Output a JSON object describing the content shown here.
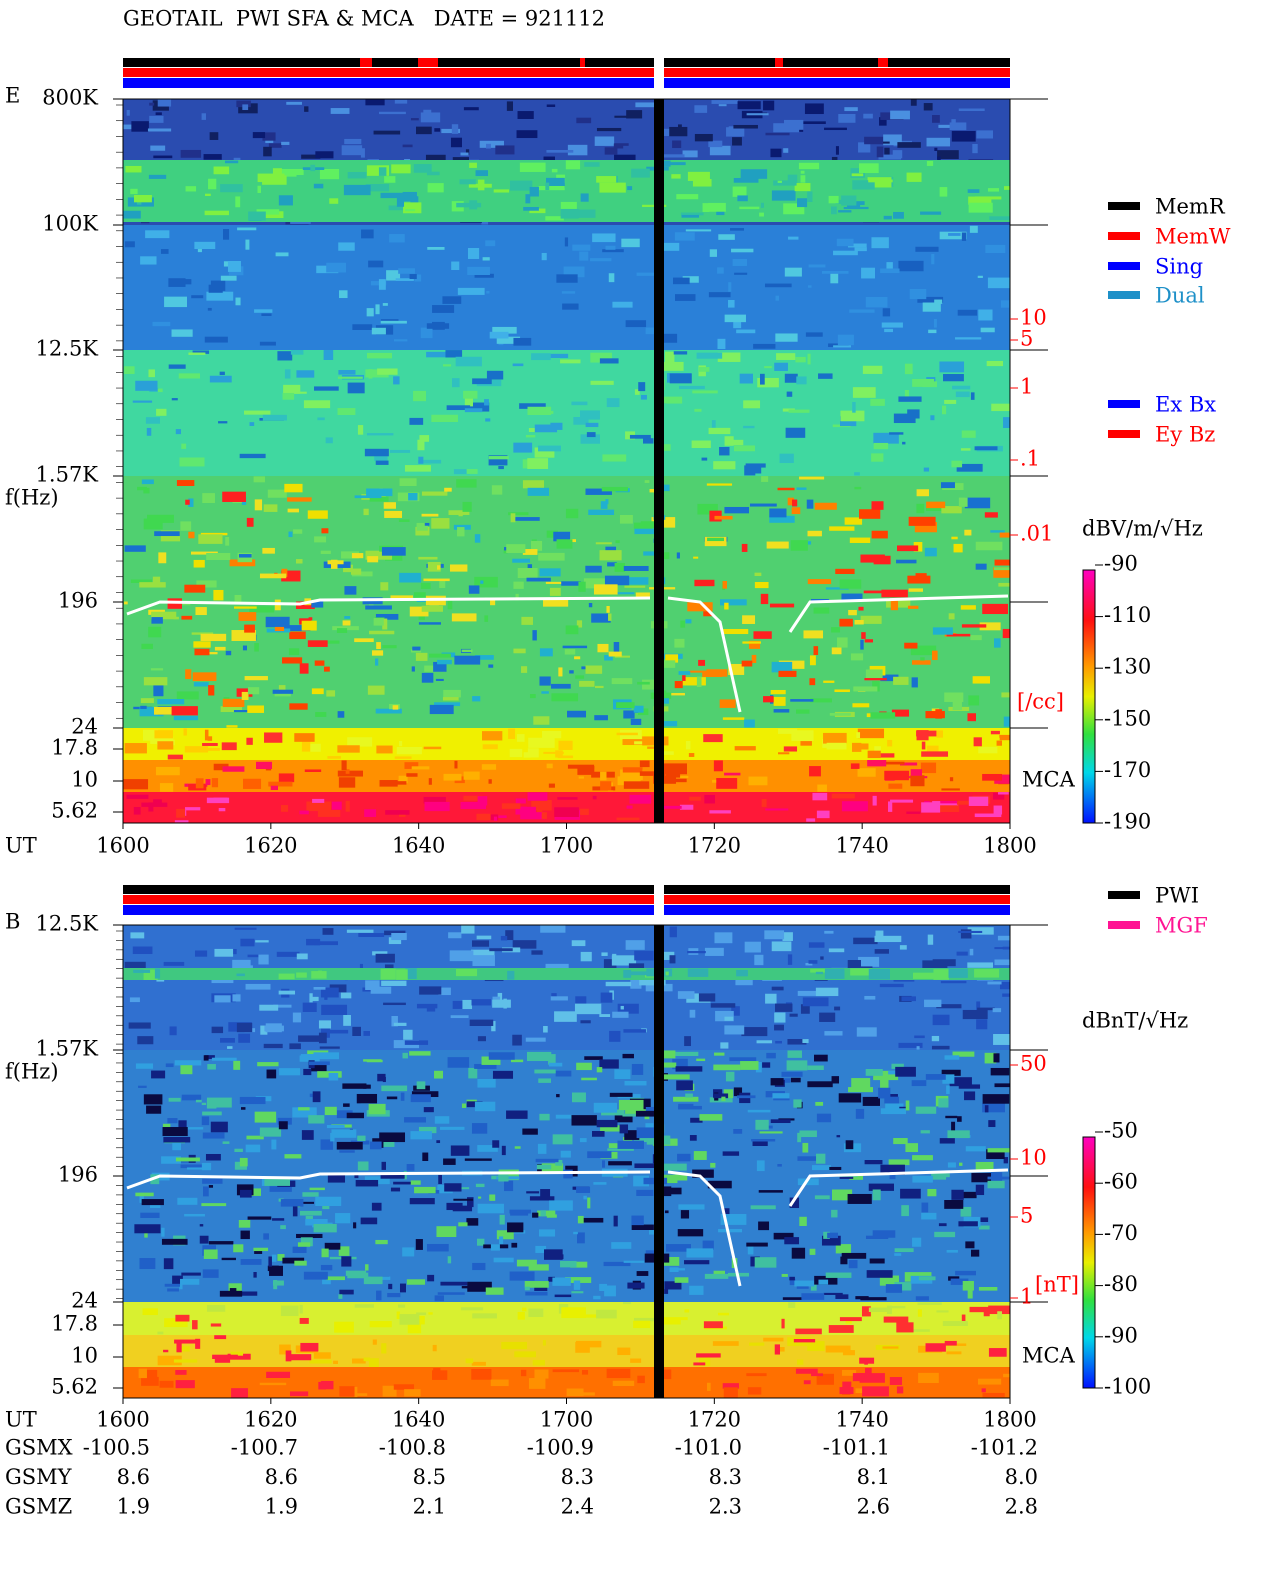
{
  "header": {
    "title": "GEOTAIL  PWI SFA & MCA   DATE = 921112"
  },
  "panels": [
    {
      "label": "E",
      "y_label": "f(Hz)",
      "freq_ticks": [
        "800K",
        "100K",
        "12.5K",
        "1.57K",
        "196",
        "24",
        "17.8",
        "10",
        "5.62"
      ],
      "time_label": "UT",
      "time_ticks": [
        "1600",
        "1620",
        "1640",
        "1700",
        "1720",
        "1740",
        "1800"
      ],
      "right_ticks": [
        "10",
        "5",
        "1",
        ".1",
        ".01",
        "[/cc]"
      ],
      "mca_label": "MCA",
      "legend": [
        {
          "name": "MemR",
          "color": "#000000"
        },
        {
          "name": "MemW",
          "color": "#ff0000"
        },
        {
          "name": "Sing",
          "color": "#0000ff"
        },
        {
          "name": "Dual",
          "color": "#1e90c8"
        }
      ],
      "legend2": [
        {
          "name": "Ex Bx",
          "color": "#0000ff"
        },
        {
          "name": "Ey Bz",
          "color": "#ff0000"
        }
      ],
      "colorbar_unit": "dBV/m/√Hz",
      "colorbar_ticks": [
        "-90",
        "-110",
        "-130",
        "-150",
        "-170",
        "-190"
      ]
    },
    {
      "label": "B",
      "y_label": "f(Hz)",
      "freq_ticks": [
        "12.5K",
        "1.57K",
        "196",
        "24",
        "17.8",
        "10",
        "5.62"
      ],
      "time_label": "UT",
      "time_ticks": [
        "1600",
        "1620",
        "1640",
        "1700",
        "1720",
        "1740",
        "1800"
      ],
      "right_ticks": [
        "50",
        "10",
        "5",
        "1",
        "[nT]"
      ],
      "mca_label": "MCA",
      "legend": [
        {
          "name": "PWI",
          "color": "#000000"
        },
        {
          "name": "MGF",
          "color": "#ff1493"
        }
      ],
      "colorbar_unit": "dBnT/√Hz",
      "colorbar_ticks": [
        "-50",
        "-60",
        "-70",
        "-80",
        "-90",
        "-100"
      ]
    }
  ],
  "orbit": {
    "rows": [
      {
        "label": "GSMX",
        "values": [
          "-100.5",
          "-100.7",
          "-100.8",
          "-100.9",
          "-101.0",
          "-101.1",
          "-101.2"
        ]
      },
      {
        "label": "GSMY",
        "values": [
          "8.6",
          "8.6",
          "8.5",
          "8.3",
          "8.3",
          "8.1",
          "8.0"
        ]
      },
      {
        "label": "GSMZ",
        "values": [
          "1.9",
          "1.9",
          "2.1",
          "2.4",
          "2.3",
          "2.6",
          "2.8"
        ]
      }
    ]
  }
}
